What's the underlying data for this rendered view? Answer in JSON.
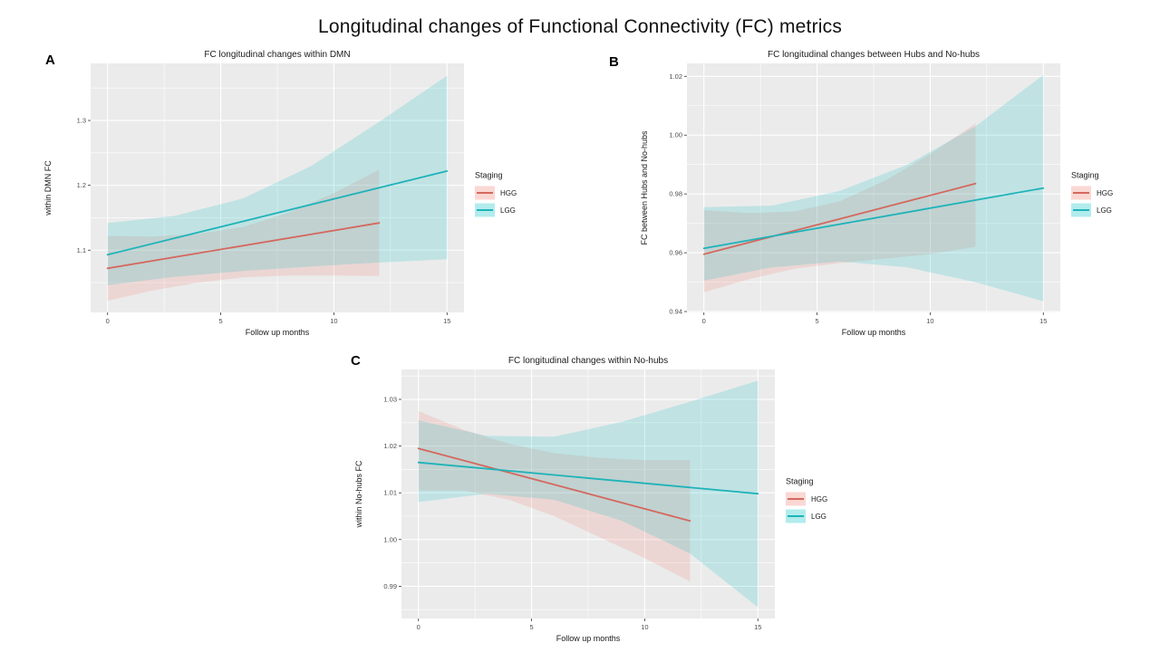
{
  "page": {
    "title": "Longitudinal changes of Functional Connectivity (FC) metrics"
  },
  "legend": {
    "title": "Staging",
    "entries": [
      "HGG",
      "LGG"
    ]
  },
  "colors": {
    "HGG": {
      "line": "#d4685e",
      "fill": "#ef7a6d"
    },
    "LGG": {
      "line": "#1eb3b9",
      "fill": "#00bfc4"
    },
    "panel_background": "#ebebeb",
    "grid": "#ffffff",
    "tick_text": "#4d4d4d",
    "title_text": "#1a1a1a",
    "ribbon_opacity": 0.18,
    "legend_swatch_opacity": 0.3
  },
  "chart_data": [
    {
      "panel_label": "A",
      "type": "line",
      "title": "FC longitudinal changes within DMN",
      "xlabel": "Follow up months",
      "ylabel": "within DMN FC",
      "xlim": [
        -0.75,
        15.75
      ],
      "ylim": [
        1.004,
        1.388
      ],
      "grid": true,
      "legend_position": "right",
      "xticks": {
        "values": [
          0,
          5,
          10,
          15
        ],
        "labels": [
          "0",
          "5",
          "10",
          "15"
        ]
      },
      "yticks": {
        "values": [
          1.1,
          1.2,
          1.3
        ],
        "labels": [
          "1.1",
          "1.2",
          "1.3"
        ]
      },
      "series": [
        {
          "name": "HGG",
          "line": {
            "x": [
              0,
              12
            ],
            "y": [
              1.072,
              1.142
            ]
          },
          "ci": {
            "x": [
              0,
              2,
              4,
              6,
              8,
              10,
              12
            ],
            "lower": [
              1.022,
              1.038,
              1.05,
              1.058,
              1.061,
              1.061,
              1.06
            ],
            "upper": [
              1.122,
              1.121,
              1.125,
              1.136,
              1.158,
              1.188,
              1.224
            ]
          }
        },
        {
          "name": "LGG",
          "line": {
            "x": [
              0,
              15
            ],
            "y": [
              1.093,
              1.222
            ]
          },
          "ci": {
            "x": [
              0,
              3,
              6,
              9,
              12,
              15
            ],
            "lower": [
              1.046,
              1.059,
              1.068,
              1.075,
              1.081,
              1.086
            ],
            "upper": [
              1.142,
              1.153,
              1.18,
              1.23,
              1.298,
              1.369
            ]
          }
        }
      ]
    },
    {
      "panel_label": "B",
      "type": "line",
      "title": "FC longitudinal changes between Hubs and No-hubs",
      "xlabel": "Follow up months",
      "ylabel": "FC between Hubs and No-hubs",
      "xlim": [
        -0.75,
        15.75
      ],
      "ylim": [
        0.9397,
        1.0244
      ],
      "grid": true,
      "legend_position": "right",
      "xticks": {
        "values": [
          0,
          5,
          10,
          15
        ],
        "labels": [
          "0",
          "5",
          "10",
          "15"
        ]
      },
      "yticks": {
        "values": [
          0.94,
          0.96,
          0.98,
          1.0,
          1.02
        ],
        "labels": [
          "0.94",
          "0.96",
          "0.98",
          "1.00",
          "1.02"
        ]
      },
      "series": [
        {
          "name": "HGG",
          "line": {
            "x": [
              0,
              12
            ],
            "y": [
              0.9595,
              0.9835
            ]
          },
          "ci": {
            "x": [
              0,
              2,
              4,
              6,
              8,
              10,
              12
            ],
            "lower": [
              0.9465,
              0.951,
              0.9545,
              0.9565,
              0.958,
              0.9595,
              0.962
            ],
            "upper": [
              0.9745,
              0.9735,
              0.974,
              0.9775,
              0.9845,
              0.9935,
              1.004
            ]
          }
        },
        {
          "name": "LGG",
          "line": {
            "x": [
              0,
              15
            ],
            "y": [
              0.9615,
              0.982
            ]
          },
          "ci": {
            "x": [
              0,
              3,
              6,
              9,
              12,
              15
            ],
            "lower": [
              0.9505,
              0.955,
              0.957,
              0.955,
              0.95,
              0.9435
            ],
            "upper": [
              0.9755,
              0.976,
              0.981,
              0.99,
              1.003,
              1.0205
            ]
          }
        }
      ]
    },
    {
      "panel_label": "C",
      "type": "line",
      "title": "FC longitudinal changes within No-hubs",
      "xlabel": "Follow up months",
      "ylabel": "within No-hubs FC",
      "xlim": [
        -0.75,
        15.75
      ],
      "ylim": [
        0.9831,
        1.0364
      ],
      "grid": true,
      "legend_position": "right",
      "xticks": {
        "values": [
          0,
          5,
          10,
          15
        ],
        "labels": [
          "0",
          "5",
          "10",
          "15"
        ]
      },
      "yticks": {
        "values": [
          0.99,
          1.0,
          1.01,
          1.02,
          1.03
        ],
        "labels": [
          "0.99",
          "1.00",
          "1.01",
          "1.02",
          "1.03"
        ]
      },
      "series": [
        {
          "name": "HGG",
          "line": {
            "x": [
              0,
              12
            ],
            "y": [
              1.0195,
              1.004
            ]
          },
          "ci": {
            "x": [
              0,
              2,
              4,
              6,
              8,
              10,
              12
            ],
            "lower": [
              1.0105,
              1.0105,
              1.0085,
              1.005,
              1.0005,
              0.996,
              0.991
            ],
            "upper": [
              1.0275,
              1.0235,
              1.0205,
              1.0185,
              1.0175,
              1.017,
              1.017
            ]
          }
        },
        {
          "name": "LGG",
          "line": {
            "x": [
              0,
              15
            ],
            "y": [
              1.0165,
              1.0098
            ]
          },
          "ci": {
            "x": [
              0,
              3,
              6,
              9,
              12,
              15
            ],
            "lower": [
              1.008,
              1.0098,
              1.0085,
              1.004,
              0.997,
              0.9855
            ],
            "upper": [
              1.0255,
              1.0222,
              1.022,
              1.0252,
              1.0295,
              1.034
            ]
          }
        }
      ]
    }
  ]
}
